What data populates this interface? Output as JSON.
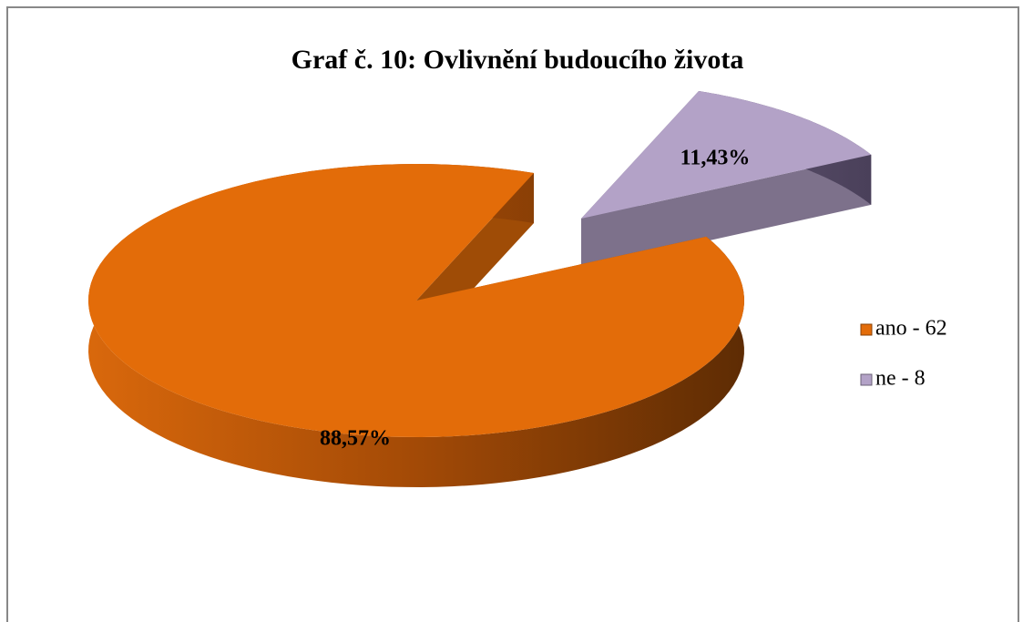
{
  "chart_data": {
    "type": "pie",
    "title": "Graf  č. 10: Ovlivnění budoucího života",
    "categories": [
      "ano - 62",
      "ne - 8"
    ],
    "values": [
      88.57,
      11.43
    ],
    "value_labels": [
      "88,57%",
      "11,43%"
    ],
    "colors": [
      "#e36c09",
      "#b3a2c7"
    ],
    "legend": "right",
    "exploded": [
      false,
      true
    ]
  }
}
